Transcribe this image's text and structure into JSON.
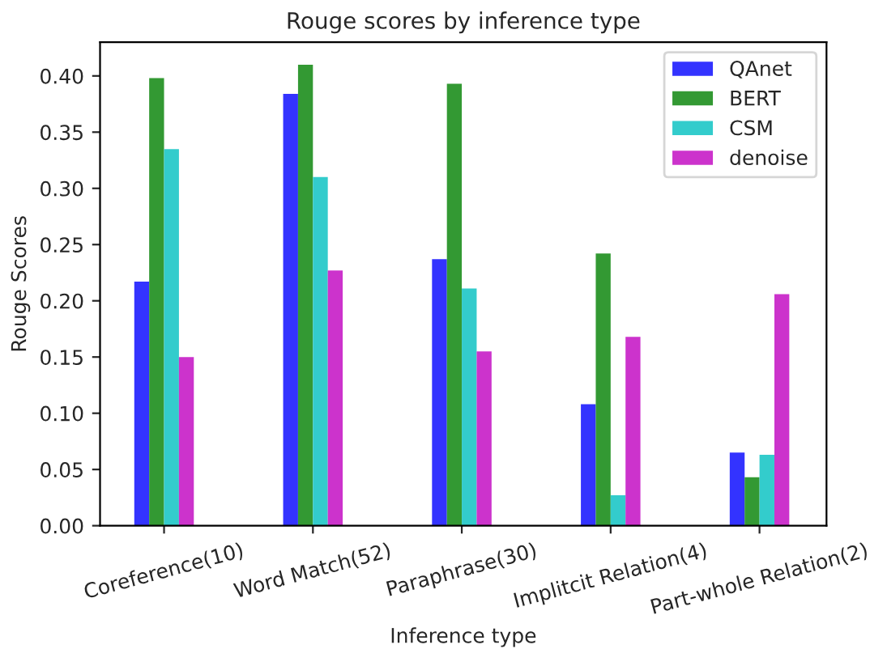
{
  "chart_data": {
    "type": "bar",
    "title": "Rouge scores by inference type",
    "xlabel": "Inference type",
    "ylabel": "Rouge Scores",
    "categories": [
      "Coreference(10)",
      "Word Match(52)",
      "Paraphrase(30)",
      "Implitcit Relation(4)",
      "Part-whole Relation(2)"
    ],
    "series": [
      {
        "name": "QAnet",
        "color": "#3333ff",
        "values": [
          0.217,
          0.384,
          0.237,
          0.108,
          0.065
        ]
      },
      {
        "name": "BERT",
        "color": "#339933",
        "values": [
          0.398,
          0.41,
          0.393,
          0.242,
          0.043
        ]
      },
      {
        "name": "CSM",
        "color": "#33cccc",
        "values": [
          0.335,
          0.31,
          0.211,
          0.027,
          0.063
        ]
      },
      {
        "name": "denoise",
        "color": "#cc33cc",
        "values": [
          0.15,
          0.227,
          0.155,
          0.168,
          0.206
        ]
      }
    ],
    "ylim": [
      0,
      0.43
    ],
    "yticks": [
      {
        "value": 0,
        "label": "0.00"
      },
      {
        "value": 0.05,
        "label": "0.05"
      },
      {
        "value": 0.1,
        "label": "0.10"
      },
      {
        "value": 0.15,
        "label": "0.15"
      },
      {
        "value": 0.2,
        "label": "0.20"
      },
      {
        "value": 0.25,
        "label": "0.25"
      },
      {
        "value": 0.3,
        "label": "0.30"
      },
      {
        "value": 0.35,
        "label": "0.35"
      },
      {
        "value": 0.4,
        "label": "0.40"
      }
    ],
    "legend": "top right",
    "grid": false
  }
}
